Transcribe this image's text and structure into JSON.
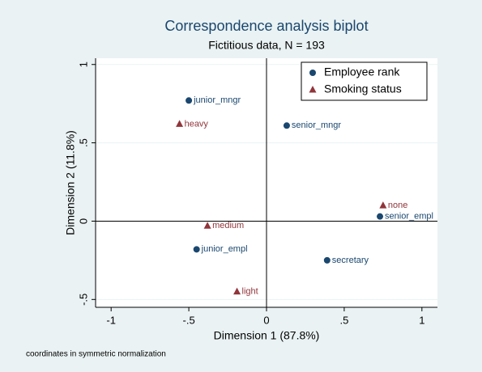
{
  "chart_data": {
    "type": "scatter",
    "title": "Correspondence analysis biplot",
    "subtitle": "Fictitious data, N = 193",
    "x_label": "Dimension 1 (87.8%)",
    "y_label": "Dimension 2 (11.8%)",
    "note": "coordinates in symmetric normalization",
    "xlim": [
      -1.1,
      1.1
    ],
    "ylim": [
      -0.55,
      1.04
    ],
    "xticks": [
      -1,
      {
        "value": -0.5,
        "label": "-.5"
      },
      0,
      {
        "value": 0.5,
        "label": ".5"
      },
      1
    ],
    "yticks": [
      {
        "value": -0.5,
        "label": "-.5"
      },
      0,
      {
        "value": 0.5,
        "label": ".5"
      },
      1
    ],
    "grid": true,
    "legend_position": "top-right",
    "series": [
      {
        "name": "Employee rank",
        "color": "#1a476f",
        "marker": "circle",
        "labels": [
          "junior_mngr",
          "senior_mngr",
          "senior_empl",
          "junior_empl",
          "secretary"
        ],
        "x": [
          -0.5,
          0.13,
          0.73,
          -0.45,
          0.39
        ],
        "values": [
          0.77,
          0.61,
          0.03,
          -0.18,
          -0.25
        ]
      },
      {
        "name": "Smoking status",
        "color": "#90353b",
        "marker": "triangle",
        "labels": [
          "heavy",
          "none",
          "medium",
          "light"
        ],
        "x": [
          -0.56,
          0.75,
          -0.38,
          -0.19
        ],
        "values": [
          0.62,
          0.1,
          -0.03,
          -0.45
        ]
      }
    ]
  }
}
